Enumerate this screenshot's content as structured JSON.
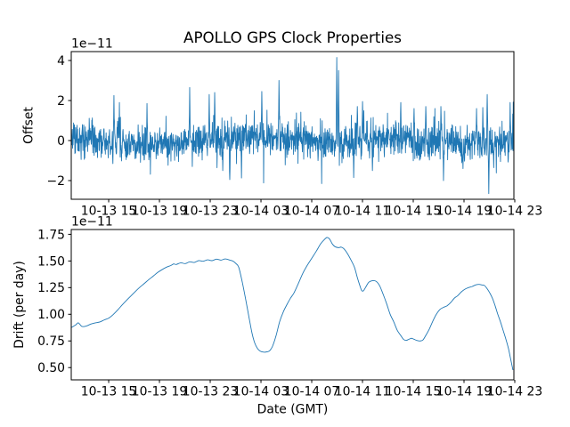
{
  "figure": {
    "background": "#ffffff",
    "text_color": "#000000",
    "line_color": "#1f77b4"
  },
  "chart_data": [
    {
      "type": "line",
      "name": "gps-clock-offset",
      "title": "APOLLO GPS Clock Properties",
      "ylabel": "Offset",
      "xlabel": "",
      "scale_label": "1e−11",
      "legend": "none",
      "grid": false,
      "line_color": "#1f77b4",
      "line_width": 0.9,
      "xlim_hours": [
        0,
        34.88
      ],
      "ylim": [
        -2.933,
        4.444
      ],
      "x_tick_hours": [
        2.95,
        6.95,
        10.95,
        14.95,
        18.95,
        22.95,
        26.95,
        30.95,
        34.95
      ],
      "x_tick_labels": [
        "10-13 15",
        "10-13 19",
        "10-13 23",
        "10-14 03",
        "10-14 07",
        "10-14 11",
        "10-14 15",
        "10-14 19",
        "10-14 23"
      ],
      "y_tick_values": [
        4,
        2,
        0,
        -2
      ],
      "y_tick_labels": [
        "4",
        "2",
        "0",
        "−2"
      ],
      "series_synthesis": {
        "comment": "dense noisy offset trace (values in 1e-11 s): zero-mean noise plus listed spikes [t_hours, peak_value]",
        "n_points": 1700,
        "t_max_hours": 34.85,
        "seed": 1317,
        "noise_std_main": 0.4,
        "noise_std_tail": 0.78,
        "tail_fraction": 0.1,
        "wander_terms": [
          [
            0.13,
            0.5,
            1.2
          ],
          [
            0.1,
            0.23,
            4.0
          ],
          [
            0.06,
            1.1,
            0.5
          ]
        ],
        "spikes": [
          [
            3.37,
            2.25
          ],
          [
            3.79,
            1.9
          ],
          [
            5.97,
            1.85
          ],
          [
            9.33,
            2.65
          ],
          [
            10.88,
            2.3
          ],
          [
            11.3,
            2.4
          ],
          [
            11.93,
            -1.5
          ],
          [
            12.49,
            -1.95
          ],
          [
            13.41,
            -1.87
          ],
          [
            15.02,
            2.45
          ],
          [
            16.36,
            3.0
          ],
          [
            19.44,
            -1.0
          ],
          [
            20.92,
            4.15
          ],
          [
            21.06,
            3.5
          ],
          [
            22.25,
            -1.85
          ],
          [
            22.55,
            1.7
          ],
          [
            22.95,
            1.95
          ],
          [
            23.73,
            -1.5
          ],
          [
            25.97,
            1.9
          ],
          [
            27.02,
            1.6
          ],
          [
            27.93,
            1.7
          ],
          [
            29.12,
            1.7
          ],
          [
            29.33,
            -2.0
          ],
          [
            30.88,
            -1.4
          ],
          [
            31.93,
            1.6
          ],
          [
            32.42,
            1.65
          ],
          [
            32.77,
            2.3
          ],
          [
            32.91,
            -2.65
          ],
          [
            34.59,
            1.9
          ]
        ]
      }
    },
    {
      "type": "line",
      "name": "gps-clock-drift",
      "title": "",
      "ylabel": "Drift (per day)",
      "xlabel": "Date (GMT)",
      "scale_label": "1e−11",
      "legend": "none",
      "grid": false,
      "line_color": "#1f77b4",
      "line_width": 0.9,
      "xlim_hours": [
        0,
        34.88
      ],
      "ylim": [
        0.385,
        1.795
      ],
      "x_tick_hours": [
        2.95,
        6.95,
        10.95,
        14.95,
        18.95,
        22.95,
        26.95,
        30.95,
        34.95
      ],
      "x_tick_labels": [
        "10-13 15",
        "10-13 19",
        "10-13 23",
        "10-14 03",
        "10-14 07",
        "10-14 11",
        "10-14 15",
        "10-14 19",
        "10-14 23"
      ],
      "y_tick_values": [
        1.75,
        1.5,
        1.25,
        1.0,
        0.75,
        0.5
      ],
      "y_tick_labels": [
        "1.75",
        "1.50",
        "1.25",
        "1.00",
        "0.75",
        "0.50"
      ],
      "points": [
        [
          0,
          0.875
        ],
        [
          0.35,
          0.9
        ],
        [
          0.56,
          0.92
        ],
        [
          0.84,
          0.886
        ],
        [
          1.19,
          0.89
        ],
        [
          1.54,
          0.908
        ],
        [
          1.9,
          0.92
        ],
        [
          2.25,
          0.928
        ],
        [
          2.6,
          0.947
        ],
        [
          2.95,
          0.964
        ],
        [
          3.3,
          0.997
        ],
        [
          3.65,
          1.039
        ],
        [
          4.0,
          1.086
        ],
        [
          4.35,
          1.13
        ],
        [
          4.7,
          1.172
        ],
        [
          5.05,
          1.214
        ],
        [
          5.4,
          1.253
        ],
        [
          5.76,
          1.289
        ],
        [
          6.11,
          1.325
        ],
        [
          6.46,
          1.358
        ],
        [
          6.81,
          1.392
        ],
        [
          7.16,
          1.419
        ],
        [
          7.51,
          1.442
        ],
        [
          7.86,
          1.458
        ],
        [
          8.07,
          1.472
        ],
        [
          8.28,
          1.467
        ],
        [
          8.63,
          1.483
        ],
        [
          8.98,
          1.475
        ],
        [
          9.33,
          1.492
        ],
        [
          9.69,
          1.486
        ],
        [
          10.04,
          1.503
        ],
        [
          10.39,
          1.497
        ],
        [
          10.74,
          1.511
        ],
        [
          11.09,
          1.503
        ],
        [
          11.44,
          1.517
        ],
        [
          11.79,
          1.508
        ],
        [
          12.14,
          1.519
        ],
        [
          12.49,
          1.508
        ],
        [
          12.77,
          1.497
        ],
        [
          12.98,
          1.475
        ],
        [
          13.2,
          1.44
        ],
        [
          13.48,
          1.3
        ],
        [
          13.76,
          1.13
        ],
        [
          14.04,
          0.95
        ],
        [
          14.25,
          0.82
        ],
        [
          14.46,
          0.73
        ],
        [
          14.67,
          0.68
        ],
        [
          14.88,
          0.655
        ],
        [
          15.16,
          0.645
        ],
        [
          15.44,
          0.648
        ],
        [
          15.65,
          0.66
        ],
        [
          15.86,
          0.7
        ],
        [
          16.14,
          0.8
        ],
        [
          16.42,
          0.93
        ],
        [
          16.7,
          1.02
        ],
        [
          16.99,
          1.09
        ],
        [
          17.27,
          1.15
        ],
        [
          17.55,
          1.2
        ],
        [
          17.9,
          1.29
        ],
        [
          18.25,
          1.385
        ],
        [
          18.6,
          1.46
        ],
        [
          18.95,
          1.525
        ],
        [
          19.3,
          1.59
        ],
        [
          19.65,
          1.66
        ],
        [
          19.94,
          1.7
        ],
        [
          20.15,
          1.72
        ],
        [
          20.36,
          1.705
        ],
        [
          20.57,
          1.66
        ],
        [
          20.78,
          1.635
        ],
        [
          21.06,
          1.625
        ],
        [
          21.27,
          1.63
        ],
        [
          21.48,
          1.615
        ],
        [
          21.76,
          1.57
        ],
        [
          22.04,
          1.51
        ],
        [
          22.32,
          1.44
        ],
        [
          22.53,
          1.35
        ],
        [
          22.74,
          1.27
        ],
        [
          22.88,
          1.225
        ],
        [
          23.02,
          1.22
        ],
        [
          23.23,
          1.26
        ],
        [
          23.44,
          1.3
        ],
        [
          23.72,
          1.315
        ],
        [
          24.01,
          1.31
        ],
        [
          24.29,
          1.27
        ],
        [
          24.57,
          1.19
        ],
        [
          24.85,
          1.1
        ],
        [
          25.13,
          1.0
        ],
        [
          25.41,
          0.93
        ],
        [
          25.69,
          0.85
        ],
        [
          25.97,
          0.8
        ],
        [
          26.18,
          0.765
        ],
        [
          26.39,
          0.755
        ],
        [
          26.6,
          0.765
        ],
        [
          26.81,
          0.775
        ],
        [
          27.02,
          0.765
        ],
        [
          27.23,
          0.755
        ],
        [
          27.51,
          0.75
        ],
        [
          27.72,
          0.76
        ],
        [
          27.93,
          0.8
        ],
        [
          28.21,
          0.86
        ],
        [
          28.49,
          0.935
        ],
        [
          28.77,
          1.0
        ],
        [
          29.05,
          1.045
        ],
        [
          29.33,
          1.065
        ],
        [
          29.62,
          1.08
        ],
        [
          29.9,
          1.11
        ],
        [
          30.18,
          1.15
        ],
        [
          30.46,
          1.175
        ],
        [
          30.74,
          1.21
        ],
        [
          31.02,
          1.235
        ],
        [
          31.3,
          1.25
        ],
        [
          31.58,
          1.26
        ],
        [
          31.86,
          1.275
        ],
        [
          32.14,
          1.28
        ],
        [
          32.35,
          1.275
        ],
        [
          32.56,
          1.27
        ],
        [
          32.77,
          1.24
        ],
        [
          32.98,
          1.2
        ],
        [
          33.19,
          1.15
        ],
        [
          33.4,
          1.08
        ],
        [
          33.61,
          1.0
        ],
        [
          33.82,
          0.93
        ],
        [
          34.03,
          0.85
        ],
        [
          34.24,
          0.77
        ],
        [
          34.45,
          0.68
        ],
        [
          34.59,
          0.6
        ],
        [
          34.73,
          0.52
        ],
        [
          34.8,
          0.48
        ]
      ]
    }
  ]
}
